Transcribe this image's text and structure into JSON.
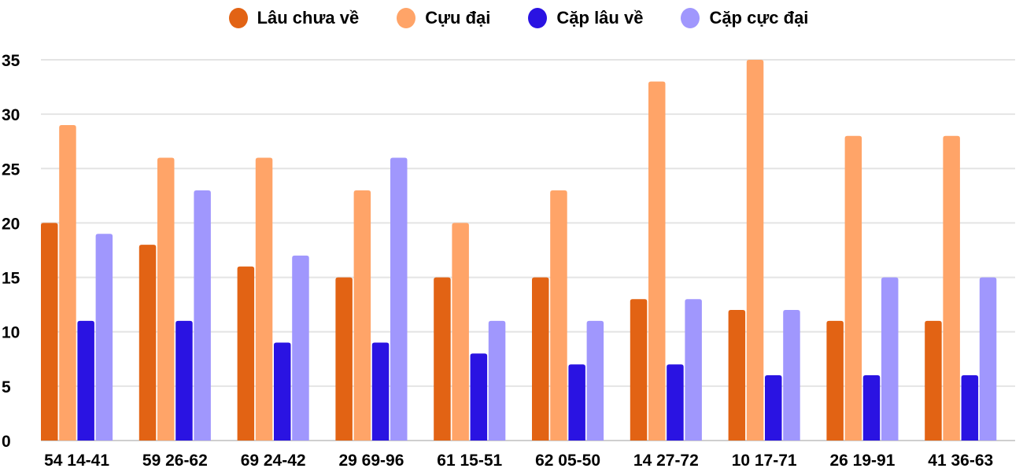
{
  "chart_data": {
    "type": "bar",
    "categories": [
      "54 14-41",
      "59 26-62",
      "69 24-42",
      "29 69-96",
      "61 15-51",
      "62 05-50",
      "14 27-72",
      "10 17-71",
      "26 19-91",
      "41 36-63"
    ],
    "series": [
      {
        "name": "Lâu chưa về",
        "color": "#E26314",
        "values": [
          20,
          18,
          16,
          15,
          15,
          15,
          13,
          12,
          11,
          11
        ]
      },
      {
        "name": "Cựu đại",
        "color": "#FFA468",
        "values": [
          29,
          26,
          26,
          23,
          20,
          23,
          33,
          35,
          28,
          28
        ]
      },
      {
        "name": "Cặp lâu về",
        "color": "#2A13E2",
        "values": [
          11,
          11,
          9,
          9,
          8,
          7,
          7,
          6,
          6,
          6
        ]
      },
      {
        "name": "Cặp cực đại",
        "color": "#A097FD",
        "values": [
          19,
          23,
          17,
          26,
          11,
          11,
          13,
          12,
          15,
          15
        ]
      }
    ],
    "yticks": [
      "0",
      "5",
      "10",
      "15",
      "20",
      "25",
      "30",
      "35"
    ],
    "ylim": [
      0,
      35
    ],
    "grid": true,
    "legend": "top",
    "xlabel": "",
    "ylabel": ""
  }
}
